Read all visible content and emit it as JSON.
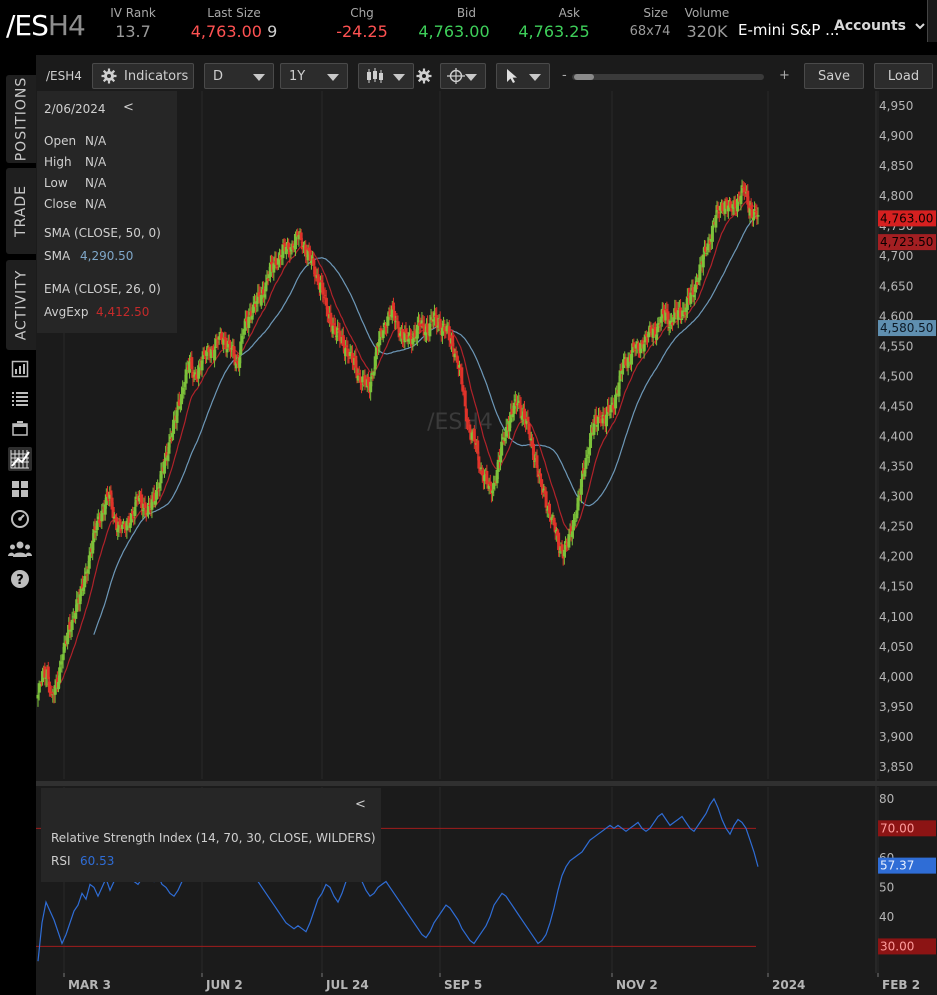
{
  "header": {
    "symbol_main": "/ES",
    "symbol_suffix": "H4",
    "iv_rank_label": "IV Rank",
    "iv_rank_value": "13.7",
    "last_size_label": "Last Size",
    "last_value": "4,763.00",
    "size_value": "9",
    "chg_label": "Chg",
    "chg_value": "-24.25",
    "bid_label": "Bid",
    "bid_value": "4,763.00",
    "ask_label": "Ask",
    "ask_value": "4,763.25",
    "size_label": "Size",
    "size_bidask": "68x74",
    "volume_label": "Volume",
    "volume_value": "320K",
    "description": "E-mini S&P ...",
    "accounts_label": "Accounts"
  },
  "sidebar": {
    "tabs": [
      "POSITIONS",
      "TRADE",
      "ACTIVITY"
    ],
    "icons": [
      "bar-chart-icon",
      "list-icon",
      "window-icon",
      "chart-grid-icon",
      "grid-icon",
      "gauge-icon",
      "people-icon",
      "help-icon"
    ]
  },
  "toolbar": {
    "symbol": "/ESH4",
    "indicators_label": "Indicators",
    "interval": "D",
    "range": "1Y",
    "zoom_minus": "-",
    "zoom_plus": "+",
    "save_label": "Save",
    "load_label": "Load"
  },
  "data_window": {
    "date": "2/06/2024",
    "collapse": "<",
    "open_label": "Open",
    "open_value": "N/A",
    "high_label": "High",
    "high_value": "N/A",
    "low_label": "Low",
    "low_value": "N/A",
    "close_label": "Close",
    "close_value": "N/A",
    "sma_title": "SMA (CLOSE, 50, 0)",
    "sma_label": "SMA",
    "sma_value": "4,290.50",
    "ema_title": "EMA (CLOSE, 26, 0)",
    "ema_label": "AvgExp",
    "ema_value": "4,412.50"
  },
  "rsi_panel": {
    "collapse": "<",
    "title": "Relative Strength Index (14, 70, 30, CLOSE, WILDERS)",
    "label": "RSI",
    "value": "60.53"
  },
  "watermark": "/ESH4",
  "colors": {
    "up": "#7cc23a",
    "down": "#e0332a",
    "sma": "#6d98b8",
    "ema": "#b0222a",
    "rsi": "#2f6dd6",
    "panel": "#1b1b1b"
  },
  "chart_data": {
    "type": "candlestick",
    "x_ticks": [
      "MAR 3",
      "JUN 2",
      "JUL 24",
      "SEP 5",
      "NOV 2",
      "2024",
      "FEB 2"
    ],
    "y_ticks": [
      "4,950",
      "4,900",
      "4,850",
      "4,800",
      "4,750",
      "4,700",
      "4,650",
      "4,600",
      "4,550",
      "4,500",
      "4,450",
      "4,400",
      "4,350",
      "4,300",
      "4,250",
      "4,200",
      "4,150",
      "4,100",
      "4,050",
      "4,000",
      "3,950",
      "3,900",
      "3,850"
    ],
    "ylim": [
      3830,
      4975
    ],
    "price_tags": [
      {
        "label": "4,763.00",
        "value": 4763,
        "color": "#d62020"
      },
      {
        "label": "4,723.50",
        "value": 4723.5,
        "color": "#a31f22"
      },
      {
        "label": "4,580.50",
        "value": 4580.5,
        "color": "#5f8fb0"
      }
    ],
    "close_path": [
      [
        0,
        3970
      ],
      [
        4,
        4000
      ],
      [
        8,
        4010
      ],
      [
        12,
        3965
      ],
      [
        17,
        3985
      ],
      [
        21,
        4040
      ],
      [
        25,
        4060
      ],
      [
        30,
        4090
      ],
      [
        34,
        4125
      ],
      [
        38,
        4135
      ],
      [
        42,
        4170
      ],
      [
        46,
        4210
      ],
      [
        50,
        4240
      ],
      [
        55,
        4270
      ],
      [
        59,
        4290
      ],
      [
        63,
        4300
      ],
      [
        67,
        4265
      ],
      [
        71,
        4250
      ],
      [
        75,
        4245
      ],
      [
        80,
        4265
      ],
      [
        84,
        4270
      ],
      [
        88,
        4300
      ],
      [
        92,
        4290
      ],
      [
        96,
        4270
      ],
      [
        100,
        4290
      ],
      [
        104,
        4310
      ],
      [
        108,
        4330
      ],
      [
        112,
        4360
      ],
      [
        116,
        4400
      ],
      [
        121,
        4430
      ],
      [
        125,
        4460
      ],
      [
        129,
        4500
      ],
      [
        133,
        4520
      ],
      [
        137,
        4500
      ],
      [
        141,
        4515
      ],
      [
        146,
        4530
      ],
      [
        150,
        4550
      ],
      [
        154,
        4540
      ],
      [
        158,
        4560
      ],
      [
        162,
        4570
      ],
      [
        166,
        4550
      ],
      [
        171,
        4540
      ],
      [
        175,
        4520
      ],
      [
        179,
        4560
      ],
      [
        183,
        4590
      ],
      [
        187,
        4610
      ],
      [
        191,
        4620
      ],
      [
        195,
        4630
      ],
      [
        200,
        4655
      ],
      [
        204,
        4675
      ],
      [
        208,
        4690
      ],
      [
        212,
        4700
      ],
      [
        216,
        4710
      ],
      [
        220,
        4715
      ],
      [
        224,
        4720
      ],
      [
        228,
        4735
      ],
      [
        233,
        4720
      ],
      [
        237,
        4705
      ],
      [
        241,
        4685
      ],
      [
        245,
        4665
      ],
      [
        249,
        4650
      ],
      [
        253,
        4610
      ],
      [
        258,
        4590
      ],
      [
        262,
        4570
      ],
      [
        266,
        4560
      ],
      [
        270,
        4550
      ],
      [
        274,
        4530
      ],
      [
        278,
        4520
      ],
      [
        282,
        4500
      ],
      [
        286,
        4490
      ],
      [
        290,
        4480
      ],
      [
        294,
        4510
      ],
      [
        298,
        4550
      ],
      [
        303,
        4580
      ],
      [
        307,
        4600
      ],
      [
        311,
        4605
      ],
      [
        315,
        4590
      ],
      [
        319,
        4570
      ],
      [
        323,
        4560
      ],
      [
        327,
        4565
      ],
      [
        331,
        4570
      ],
      [
        335,
        4585
      ],
      [
        339,
        4580
      ],
      [
        343,
        4580
      ],
      [
        347,
        4595
      ],
      [
        351,
        4590
      ],
      [
        355,
        4580
      ],
      [
        360,
        4570
      ],
      [
        364,
        4555
      ],
      [
        368,
        4525
      ],
      [
        372,
        4490
      ],
      [
        376,
        4440
      ],
      [
        380,
        4400
      ],
      [
        384,
        4390
      ],
      [
        388,
        4350
      ],
      [
        392,
        4330
      ],
      [
        396,
        4310
      ],
      [
        400,
        4320
      ],
      [
        404,
        4350
      ],
      [
        408,
        4390
      ],
      [
        412,
        4420
      ],
      [
        417,
        4440
      ],
      [
        421,
        4460
      ],
      [
        425,
        4440
      ],
      [
        429,
        4420
      ],
      [
        433,
        4390
      ],
      [
        437,
        4360
      ],
      [
        441,
        4320
      ],
      [
        445,
        4300
      ],
      [
        449,
        4275
      ],
      [
        453,
        4250
      ],
      [
        457,
        4220
      ],
      [
        461,
        4210
      ],
      [
        465,
        4220
      ],
      [
        469,
        4250
      ],
      [
        474,
        4290
      ],
      [
        478,
        4330
      ],
      [
        482,
        4370
      ],
      [
        486,
        4410
      ],
      [
        490,
        4420
      ],
      [
        494,
        4435
      ],
      [
        498,
        4430
      ],
      [
        502,
        4440
      ],
      [
        506,
        4460
      ],
      [
        510,
        4490
      ],
      [
        514,
        4520
      ],
      [
        518,
        4530
      ],
      [
        522,
        4545
      ],
      [
        526,
        4545
      ],
      [
        531,
        4560
      ],
      [
        535,
        4565
      ],
      [
        539,
        4575
      ],
      [
        543,
        4580
      ],
      [
        547,
        4595
      ],
      [
        551,
        4605
      ],
      [
        555,
        4590
      ],
      [
        559,
        4600
      ],
      [
        563,
        4605
      ],
      [
        567,
        4610
      ],
      [
        571,
        4625
      ],
      [
        575,
        4640
      ],
      [
        579,
        4665
      ],
      [
        583,
        4690
      ],
      [
        588,
        4720
      ],
      [
        592,
        4745
      ],
      [
        596,
        4770
      ],
      [
        600,
        4785
      ],
      [
        604,
        4790
      ],
      [
        608,
        4775
      ],
      [
        612,
        4790
      ],
      [
        616,
        4800
      ],
      [
        620,
        4810
      ],
      [
        624,
        4785
      ],
      [
        628,
        4770
      ],
      [
        632,
        4763
      ]
    ],
    "sma": {
      "label": "SMA (CLOSE, 50, 0)",
      "value": 4290.5
    },
    "ema": {
      "label": "EMA (CLOSE, 26, 0)",
      "value": 4412.5
    },
    "rsi": {
      "ticks": [
        "80",
        "70",
        "60",
        "50",
        "40",
        "30"
      ],
      "ylim": [
        21,
        84
      ],
      "levels": [
        {
          "label": "70.00",
          "value": 70
        },
        {
          "label": "30.00",
          "value": 30
        }
      ],
      "last_tag": "57.37",
      "values": [
        25,
        38,
        45,
        42,
        39,
        35,
        31,
        34,
        38,
        42,
        44,
        48,
        46,
        51,
        50,
        47,
        50,
        53,
        49,
        52,
        55,
        56,
        57,
        54,
        52,
        51,
        53,
        56,
        53,
        52,
        54,
        51,
        50,
        48,
        47,
        49,
        52,
        55,
        57,
        58,
        59,
        60,
        58,
        55,
        56,
        59,
        61,
        63,
        65,
        63,
        62,
        60,
        58,
        56,
        55,
        52,
        50,
        48,
        46,
        44,
        42,
        40,
        38,
        37,
        36,
        37,
        36,
        35,
        38,
        42,
        46,
        48,
        51,
        50,
        47,
        45,
        48,
        52,
        55,
        56,
        54,
        52,
        49,
        47,
        48,
        50,
        51,
        52,
        50,
        48,
        46,
        44,
        42,
        40,
        38,
        36,
        34,
        33,
        35,
        38,
        40,
        42,
        44,
        43,
        41,
        39,
        36,
        34,
        32,
        31,
        33,
        35,
        37,
        40,
        44,
        46,
        48,
        47,
        45,
        43,
        41,
        39,
        37,
        35,
        33,
        31,
        32,
        34,
        38,
        43,
        49,
        54,
        57,
        59,
        60,
        61,
        62,
        64,
        66,
        67,
        68,
        69,
        70,
        71,
        70,
        71,
        70,
        69,
        70,
        71,
        72,
        70,
        69,
        70,
        72,
        74,
        75,
        73,
        71,
        72,
        73,
        74,
        72,
        70,
        69,
        71,
        73,
        75,
        78,
        80,
        77,
        73,
        70,
        68,
        71,
        73,
        72,
        70,
        66,
        62,
        57
      ]
    }
  }
}
